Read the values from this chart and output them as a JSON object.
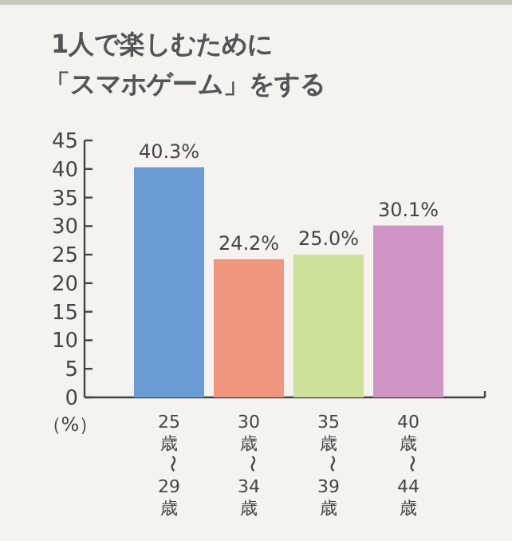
{
  "chart_data": {
    "type": "bar",
    "title": "1人で楽しむために「スマホゲーム」をする",
    "ylabel": "（%）",
    "categories": [
      "25歳〜29歳",
      "30歳〜34歳",
      "35歳〜39歳",
      "40歳〜44歳"
    ],
    "values": [
      40.3,
      24.2,
      25.0,
      30.1
    ],
    "value_labels": [
      "40.3%",
      "24.2%",
      "25.0%",
      "30.1%"
    ],
    "colors": [
      "#6a9bd4",
      "#f0957e",
      "#cde09a",
      "#cf95c4"
    ],
    "ylim": [
      0,
      45
    ],
    "yticks": [
      0,
      5,
      10,
      15,
      20,
      25,
      30,
      35,
      40,
      45
    ],
    "grid": false
  }
}
